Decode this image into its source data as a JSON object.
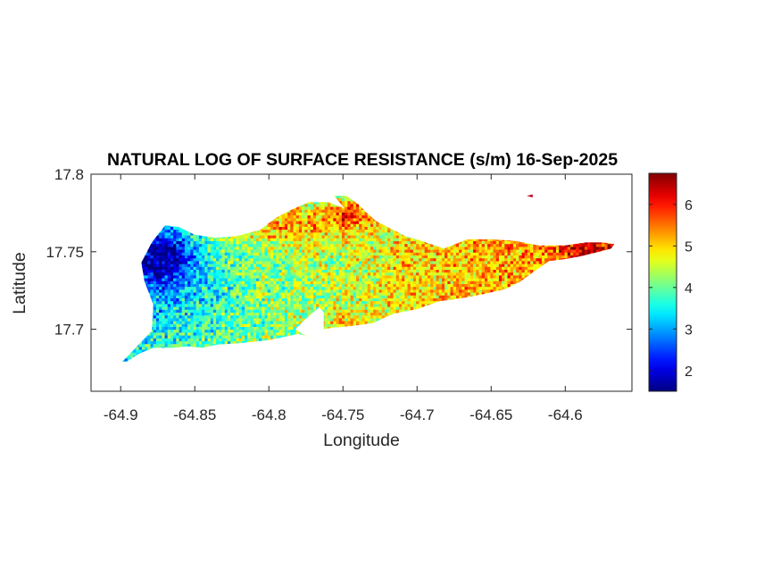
{
  "chart_data": {
    "type": "heatmap",
    "title": "NATURAL LOG OF SURFACE RESISTANCE (s/m) 16-Sep-2025",
    "xlabel": "Longitude",
    "ylabel": "Latitude",
    "xlim": [
      -64.92,
      -64.555
    ],
    "ylim": [
      17.66,
      17.8
    ],
    "xticks": [
      -64.9,
      -64.85,
      -64.8,
      -64.75,
      -64.7,
      -64.65,
      -64.6
    ],
    "xtick_labels": [
      "-64.9",
      "-64.85",
      "-64.8",
      "-64.75",
      "-64.7",
      "-64.65",
      "-64.6"
    ],
    "yticks": [
      17.7,
      17.75,
      17.8
    ],
    "ytick_labels": [
      "17.7",
      "17.75",
      "17.8"
    ],
    "colormap": "jet",
    "clim": [
      1.5,
      6.75
    ],
    "colorbar_ticks": [
      2,
      3,
      4,
      5,
      6
    ],
    "colorbar_tick_labels": [
      "2",
      "3",
      "4",
      "5",
      "6"
    ],
    "colorbar_location": "right",
    "grid": false,
    "region_outline_lonlat": [
      [
        -64.899,
        17.679
      ],
      [
        -64.889,
        17.689
      ],
      [
        -64.879,
        17.699
      ],
      [
        -64.878,
        17.716
      ],
      [
        -64.884,
        17.731
      ],
      [
        -64.886,
        17.743
      ],
      [
        -64.879,
        17.756
      ],
      [
        -64.87,
        17.767
      ],
      [
        -64.861,
        17.766
      ],
      [
        -64.85,
        17.761
      ],
      [
        -64.836,
        17.759
      ],
      [
        -64.822,
        17.76
      ],
      [
        -64.806,
        17.764
      ],
      [
        -64.795,
        17.772
      ],
      [
        -64.785,
        17.777
      ],
      [
        -64.773,
        17.782
      ],
      [
        -64.76,
        17.782
      ],
      [
        -64.749,
        17.778
      ],
      [
        -64.756,
        17.786
      ],
      [
        -64.748,
        17.786
      ],
      [
        -64.74,
        17.781
      ],
      [
        -64.735,
        17.776
      ],
      [
        -64.728,
        17.77
      ],
      [
        -64.718,
        17.765
      ],
      [
        -64.708,
        17.76
      ],
      [
        -64.697,
        17.757
      ],
      [
        -64.682,
        17.752
      ],
      [
        -64.666,
        17.758
      ],
      [
        -64.65,
        17.758
      ],
      [
        -64.634,
        17.757
      ],
      [
        -64.618,
        17.754
      ],
      [
        -64.6,
        17.754
      ],
      [
        -64.586,
        17.756
      ],
      [
        -64.575,
        17.756
      ],
      [
        -64.567,
        17.755
      ],
      [
        -64.569,
        17.752
      ],
      [
        -64.577,
        17.75
      ],
      [
        -64.59,
        17.747
      ],
      [
        -64.602,
        17.745
      ],
      [
        -64.611,
        17.744
      ],
      [
        -64.62,
        17.738
      ],
      [
        -64.63,
        17.731
      ],
      [
        -64.64,
        17.726
      ],
      [
        -64.654,
        17.723
      ],
      [
        -64.67,
        17.72
      ],
      [
        -64.685,
        17.718
      ],
      [
        -64.7,
        17.713
      ],
      [
        -64.716,
        17.71
      ],
      [
        -64.73,
        17.704
      ],
      [
        -64.745,
        17.702
      ],
      [
        -64.757,
        17.701
      ],
      [
        -64.763,
        17.7
      ],
      [
        -64.763,
        17.711
      ],
      [
        -64.766,
        17.714
      ],
      [
        -64.77,
        17.711
      ],
      [
        -64.777,
        17.705
      ],
      [
        -64.782,
        17.7
      ],
      [
        -64.776,
        17.696
      ],
      [
        -64.769,
        17.694
      ],
      [
        -64.78,
        17.697
      ],
      [
        -64.8,
        17.693
      ],
      [
        -64.82,
        17.691
      ],
      [
        -64.835,
        17.69
      ],
      [
        -64.845,
        17.688
      ],
      [
        -64.855,
        17.689
      ],
      [
        -64.865,
        17.688
      ],
      [
        -64.878,
        17.688
      ],
      [
        -64.888,
        17.684
      ],
      [
        -64.896,
        17.679
      ]
    ],
    "islet_outline_lonlat": [
      [
        -64.626,
        17.786
      ],
      [
        -64.622,
        17.787
      ],
      [
        -64.622,
        17.785
      ]
    ],
    "field_model": "approximate: low (about 1.5–3) in the far west near -64.89 to -64.86, rising to about 4–5 across the centre, 5–5.5 in the east near -64.70 to -64.63, about 6.5 at the eastern tip and about 6 along the north-central coast"
  }
}
